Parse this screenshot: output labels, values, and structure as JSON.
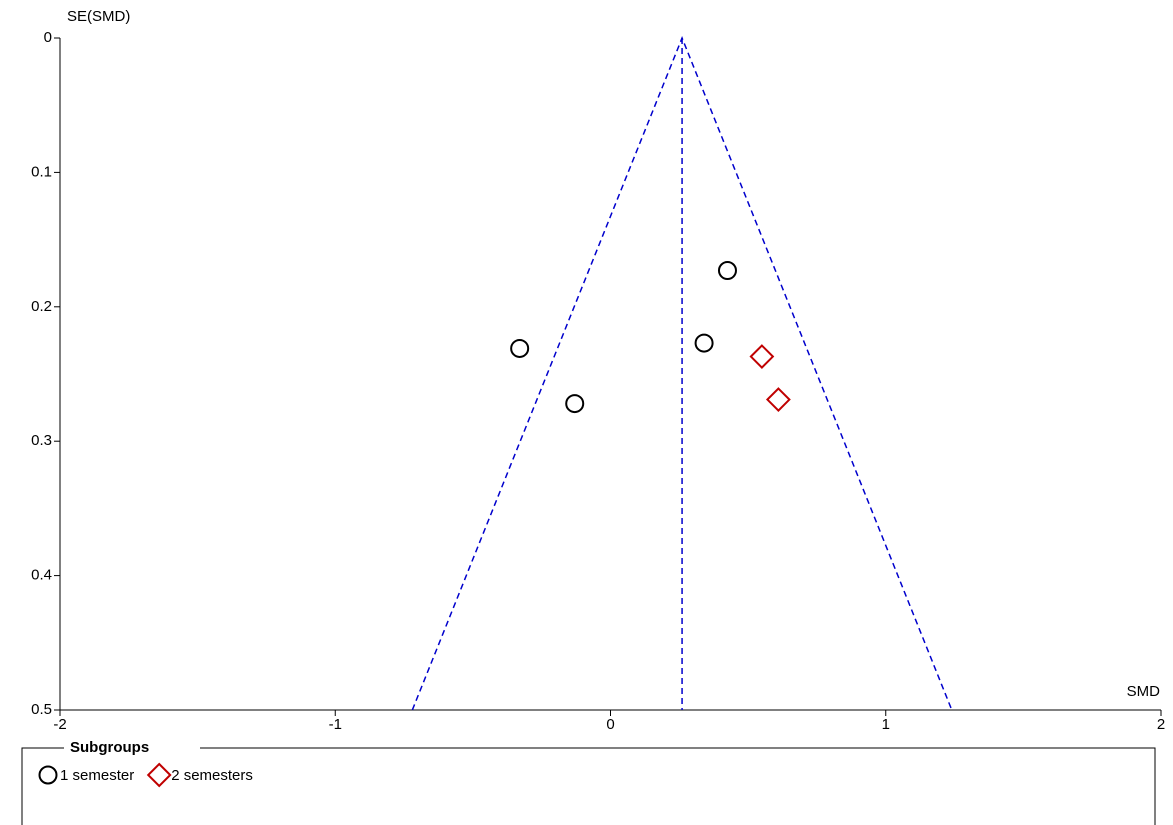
{
  "chart_data": {
    "type": "scatter",
    "x_label": "SMD",
    "y_label": "SE(SMD)",
    "xlim": [
      -2,
      2
    ],
    "xticks": [
      -2,
      -1,
      0,
      1,
      2
    ],
    "ylim": [
      0,
      0.5
    ],
    "yticks": [
      0,
      0.1,
      0.2,
      0.3,
      0.4,
      0.5
    ],
    "y_inverted": true,
    "series": [
      {
        "name": "1 semester",
        "marker": "circle",
        "color": "#000000",
        "x": [
          0.425,
          0.34,
          -0.33,
          -0.13
        ],
        "y": [
          0.173,
          0.227,
          0.231,
          0.272
        ]
      },
      {
        "name": "2 semesters",
        "marker": "diamond",
        "color": "#c00000",
        "x": [
          0.55,
          0.61
        ],
        "y": [
          0.237,
          0.269
        ]
      }
    ],
    "reference_lines": [
      {
        "x": [
          0.26,
          0.26
        ],
        "y": [
          0,
          0.5
        ]
      },
      {
        "x": [
          -0.72,
          0.26,
          1.24
        ],
        "y": [
          0.5,
          0,
          0.5
        ]
      }
    ],
    "reference_color": "#0000cc",
    "legend_title": "Subgroups"
  }
}
